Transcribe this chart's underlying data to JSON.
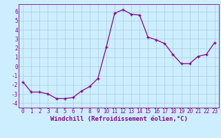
{
  "x": [
    0,
    1,
    2,
    3,
    4,
    5,
    6,
    7,
    8,
    9,
    10,
    11,
    12,
    13,
    14,
    15,
    16,
    17,
    18,
    19,
    20,
    21,
    22,
    23
  ],
  "y": [
    -1.7,
    -2.8,
    -2.8,
    -3.0,
    -3.5,
    -3.5,
    -3.4,
    -2.7,
    -2.2,
    -1.3,
    2.1,
    5.8,
    6.2,
    5.7,
    5.6,
    3.2,
    2.9,
    2.5,
    1.3,
    0.3,
    0.3,
    1.1,
    1.3,
    2.6
  ],
  "line_color": "#880088",
  "marker": "+",
  "bg_color": "#cceeff",
  "grid_color": "#aaccdd",
  "xlabel": "Windchill (Refroidissement éolien,°C)",
  "xlim": [
    -0.5,
    23.5
  ],
  "ylim": [
    -4.5,
    6.8
  ],
  "yticks": [
    -4,
    -3,
    -2,
    -1,
    0,
    1,
    2,
    3,
    4,
    5,
    6
  ],
  "xticks": [
    0,
    1,
    2,
    3,
    4,
    5,
    6,
    7,
    8,
    9,
    10,
    11,
    12,
    13,
    14,
    15,
    16,
    17,
    18,
    19,
    20,
    21,
    22,
    23
  ],
  "tick_color": "#880088",
  "label_fontsize": 6.5,
  "tick_fontsize": 5.5
}
